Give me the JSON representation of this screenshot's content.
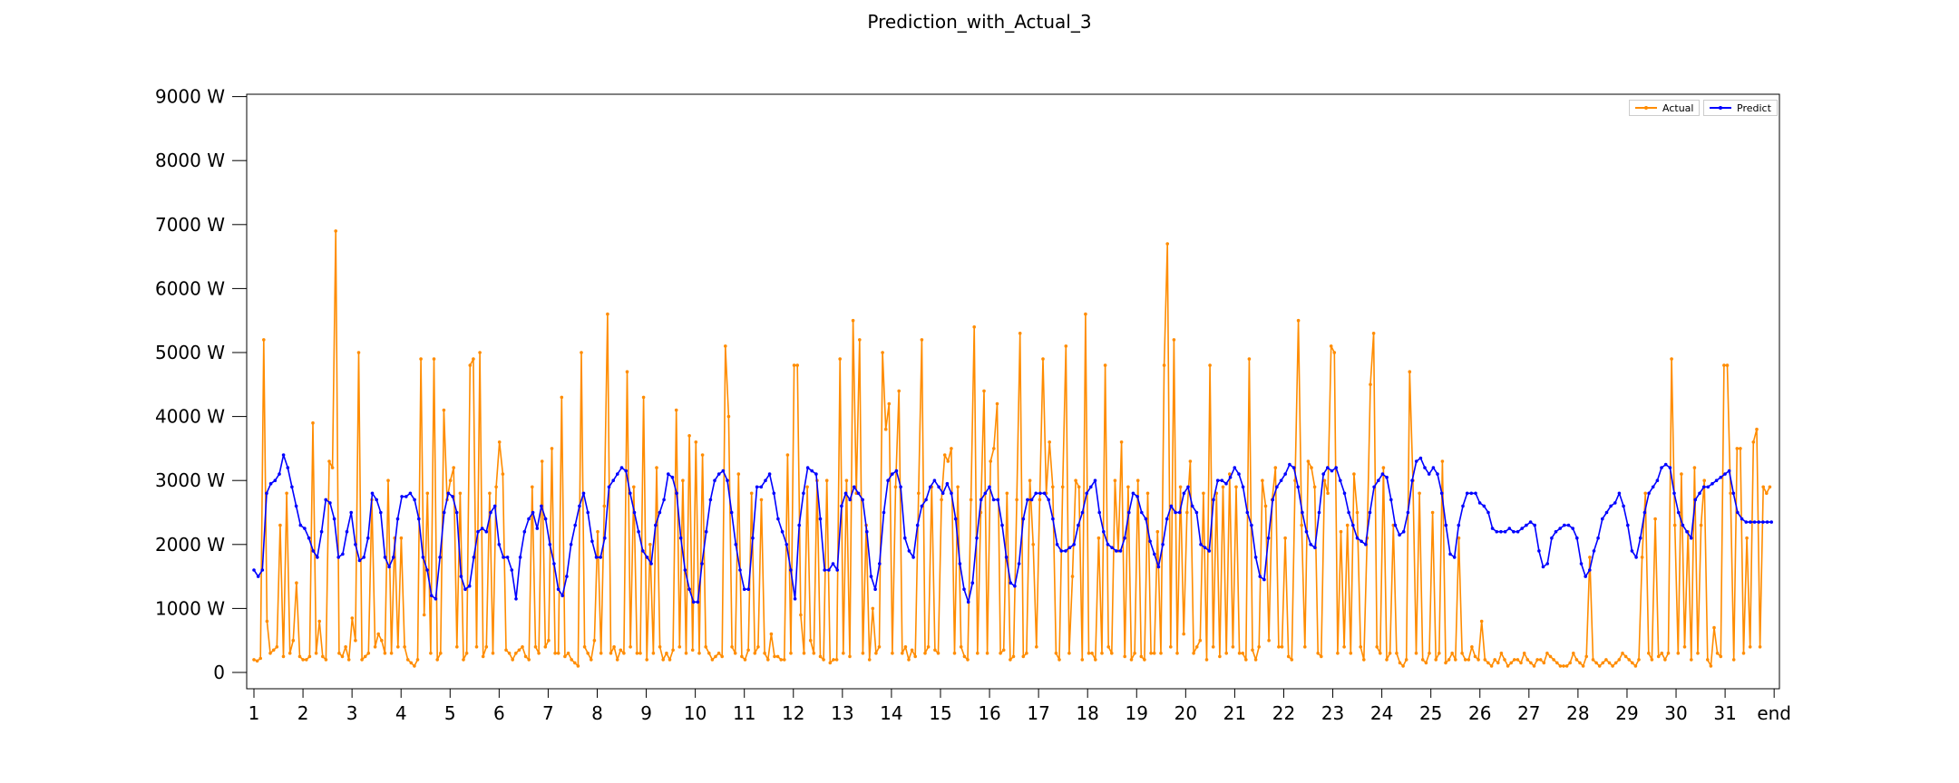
{
  "chart_data": {
    "type": "line",
    "title": "Prediction_with_Actual_3",
    "xlabel": "",
    "ylabel": "",
    "x_ticks": [
      "1",
      "2",
      "3",
      "4",
      "5",
      "6",
      "7",
      "8",
      "9",
      "10",
      "11",
      "12",
      "13",
      "14",
      "15",
      "16",
      "17",
      "18",
      "19",
      "20",
      "21",
      "22",
      "23",
      "24",
      "25",
      "26",
      "27",
      "28",
      "29",
      "30",
      "31",
      "end"
    ],
    "y_ticks": [
      "0",
      "1000 W",
      "2000 W",
      "3000 W",
      "4000 W",
      "5000 W",
      "6000 W",
      "7000 W",
      "8000 W",
      "9000 W"
    ],
    "y_tick_values": [
      0,
      1000,
      2000,
      3000,
      4000,
      5000,
      6000,
      7000,
      8000,
      9000
    ],
    "ylim": [
      -250,
      9000
    ],
    "xlim": [
      0.88,
      32.05
    ],
    "legend_position": "top-right",
    "colors": {
      "actual": "#ff8c00",
      "predict": "#0000ff"
    },
    "series": [
      {
        "name": "Actual",
        "points_per_day": 16,
        "day_profiles": [
          [
            200,
            180,
            220,
            5200,
            800,
            300,
            350,
            400,
            2300,
            250,
            2800,
            300,
            500,
            1400,
            250,
            200
          ],
          [
            200,
            250,
            3900,
            300,
            800,
            250,
            200,
            3300,
            3200,
            6900,
            300,
            250,
            400,
            200,
            850,
            500
          ],
          [
            5000,
            200,
            250,
            300,
            2700,
            400,
            600,
            500,
            300,
            3000,
            300,
            2100,
            400,
            2100,
            400,
            200
          ],
          [
            150,
            100,
            200,
            4900,
            900,
            2800,
            300,
            4900,
            200,
            300,
            4100,
            2700,
            3000,
            3200,
            400,
            2800
          ],
          [
            200,
            300,
            4800,
            4900,
            400,
            5000,
            250,
            400,
            2800,
            300,
            2900,
            3600,
            3100,
            350,
            300,
            200
          ],
          [
            300,
            350,
            400,
            250,
            200,
            2900,
            400,
            300,
            3300,
            400,
            500,
            3500,
            300,
            300,
            4300,
            250
          ],
          [
            300,
            200,
            150,
            100,
            5000,
            400,
            300,
            200,
            500,
            2200,
            300,
            2600,
            5600,
            300,
            400,
            200
          ],
          [
            350,
            300,
            4700,
            400,
            2900,
            300,
            300,
            4300,
            200,
            2000,
            300,
            3200,
            400,
            200,
            300,
            200
          ],
          [
            350,
            4100,
            400,
            3000,
            300,
            3700,
            350,
            3600,
            300,
            3400,
            400,
            300,
            200,
            250,
            300,
            250
          ],
          [
            5100,
            4000,
            400,
            300,
            3100,
            250,
            200,
            350,
            2800,
            300,
            400,
            2700,
            300,
            200,
            600,
            250
          ],
          [
            250,
            200,
            200,
            3400,
            300,
            4800,
            4800,
            900,
            300,
            2900,
            500,
            300,
            3000,
            250,
            200,
            3000
          ],
          [
            150,
            200,
            200,
            4900,
            300,
            3000,
            250,
            5500,
            2800,
            5200,
            300,
            2300,
            200,
            1000,
            300,
            400
          ],
          [
            5000,
            3800,
            4200,
            300,
            2900,
            4400,
            300,
            400,
            200,
            350,
            250,
            2800,
            5200,
            300,
            400,
            2900
          ],
          [
            350,
            300,
            2700,
            3400,
            3300,
            3500,
            300,
            2900,
            400,
            250,
            200,
            2700,
            5400,
            300,
            2500,
            4400
          ],
          [
            300,
            3300,
            3500,
            4200,
            300,
            350,
            2800,
            200,
            250,
            2700,
            5300,
            250,
            300,
            3000,
            2000,
            400
          ],
          [
            2700,
            4900,
            2800,
            3600,
            2900,
            300,
            200,
            2900,
            5100,
            300,
            1500,
            3000,
            2900,
            200,
            5600,
            300
          ],
          [
            300,
            200,
            2100,
            300,
            4800,
            400,
            300,
            3000,
            1900,
            3600,
            250,
            2900,
            200,
            300,
            3000,
            250
          ],
          [
            200,
            2800,
            300,
            300,
            2200,
            300,
            4800,
            6700,
            400,
            5200,
            300,
            2900,
            600,
            2500,
            3300,
            300
          ],
          [
            400,
            500,
            2800,
            200,
            4800,
            400,
            2800,
            250,
            2900,
            300,
            3100,
            400,
            2900,
            300,
            300,
            200
          ],
          [
            4900,
            350,
            200,
            400,
            3000,
            2600,
            500,
            2700,
            3200,
            400,
            400,
            2100,
            250,
            200,
            3000,
            5500
          ],
          [
            2300,
            400,
            3300,
            3200,
            2900,
            300,
            250,
            3000,
            2800,
            5100,
            5000,
            300,
            2200,
            400,
            2300,
            300
          ],
          [
            3100,
            2500,
            400,
            200,
            2100,
            4500,
            5300,
            400,
            300,
            3200,
            200,
            300,
            2300,
            300,
            150,
            100
          ],
          [
            200,
            4700,
            3000,
            300,
            2800,
            200,
            150,
            300,
            2500,
            200,
            300,
            3300,
            150,
            200,
            300,
            200
          ],
          [
            2100,
            300,
            200,
            200,
            400,
            250,
            200,
            800,
            200,
            150,
            100,
            200,
            150,
            300,
            200,
            100
          ],
          [
            150,
            200,
            200,
            150,
            300,
            200,
            150,
            100,
            200,
            200,
            150,
            300,
            250,
            200,
            150,
            100
          ],
          [
            100,
            100,
            150,
            300,
            200,
            150,
            100,
            250,
            1800,
            200,
            150,
            100,
            150,
            200,
            150,
            100
          ],
          [
            150,
            200,
            300,
            250,
            200,
            150,
            100,
            200,
            1800,
            2800,
            300,
            200,
            2400,
            250,
            300,
            200
          ],
          [
            300,
            4900,
            2300,
            300,
            3100,
            400,
            2200,
            200,
            3200,
            300,
            2300,
            3000,
            200,
            100,
            700,
            300
          ],
          [
            250,
            4800,
            4800,
            2800,
            200,
            3500,
            3500,
            300,
            2100,
            400,
            3600,
            3800,
            400,
            2900,
            2800,
            2900
          ]
        ]
      },
      {
        "name": "Predict",
        "points_per_day": 12,
        "day_profiles": [
          [
            1600,
            1500,
            1600,
            2800,
            2950,
            3000,
            3100,
            3400,
            3200,
            2900,
            2600,
            2300
          ],
          [
            2250,
            2100,
            1900,
            1800,
            2200,
            2700,
            2650,
            2400,
            1800,
            1850,
            2200,
            2500
          ],
          [
            2000,
            1750,
            1800,
            2100,
            2800,
            2700,
            2500,
            1800,
            1650,
            1800,
            2400,
            2750
          ],
          [
            2750,
            2800,
            2700,
            2400,
            1800,
            1600,
            1200,
            1150,
            1800,
            2500,
            2800,
            2750
          ],
          [
            2500,
            1500,
            1300,
            1350,
            1800,
            2200,
            2250,
            2200,
            2500,
            2600,
            2000,
            1800
          ],
          [
            1800,
            1600,
            1150,
            1800,
            2200,
            2400,
            2500,
            2250,
            2600,
            2400,
            2000,
            1700
          ],
          [
            1300,
            1200,
            1500,
            2000,
            2300,
            2600,
            2800,
            2500,
            2050,
            1800,
            1800,
            2100
          ],
          [
            2900,
            3000,
            3100,
            3200,
            3150,
            2800,
            2500,
            2200,
            1900,
            1800,
            1700,
            2300
          ],
          [
            2500,
            2700,
            3100,
            3050,
            2800,
            2100,
            1600,
            1300,
            1100,
            1100,
            1700,
            2200
          ],
          [
            2700,
            3000,
            3100,
            3150,
            3000,
            2500,
            2000,
            1600,
            1300,
            1300,
            2100,
            2900
          ],
          [
            2900,
            3000,
            3100,
            2800,
            2400,
            2200,
            2000,
            1600,
            1150,
            2300,
            2800,
            3200
          ],
          [
            3150,
            3100,
            2400,
            1600,
            1600,
            1700,
            1600,
            2600,
            2800,
            2700,
            2900,
            2800
          ],
          [
            2700,
            2200,
            1500,
            1300,
            1700,
            2500,
            3000,
            3100,
            3150,
            2900,
            2100,
            1900
          ],
          [
            1800,
            2300,
            2600,
            2700,
            2900,
            3000,
            2900,
            2800,
            2950,
            2800,
            2400,
            1700
          ],
          [
            1300,
            1100,
            1400,
            2100,
            2700,
            2800,
            2900,
            2700,
            2700,
            2300,
            1800,
            1400
          ],
          [
            1350,
            1700,
            2400,
            2700,
            2700,
            2800,
            2800,
            2800,
            2700,
            2400,
            2000,
            1900
          ],
          [
            1900,
            1950,
            2000,
            2300,
            2500,
            2800,
            2900,
            3000,
            2500,
            2200,
            2000,
            1950
          ],
          [
            1900,
            1900,
            2100,
            2500,
            2800,
            2750,
            2500,
            2400,
            2050,
            1850,
            1650,
            2000
          ],
          [
            2400,
            2600,
            2500,
            2500,
            2800,
            2900,
            2600,
            2500,
            2000,
            1950,
            1900,
            2700
          ],
          [
            3000,
            3000,
            2950,
            3050,
            3200,
            3100,
            2900,
            2500,
            2300,
            1800,
            1500,
            1450
          ],
          [
            2100,
            2700,
            2900,
            3000,
            3100,
            3250,
            3200,
            2900,
            2500,
            2200,
            2000,
            1950
          ],
          [
            2500,
            3100,
            3200,
            3150,
            3200,
            3000,
            2800,
            2500,
            2300,
            2100,
            2050,
            2000
          ],
          [
            2500,
            2900,
            3000,
            3100,
            3050,
            2700,
            2300,
            2150,
            2200,
            2500,
            3000,
            3300
          ],
          [
            3350,
            3200,
            3100,
            3200,
            3100,
            2800,
            2300,
            1850,
            1800,
            2300,
            2600,
            2800
          ],
          [
            2800,
            2800,
            2650,
            2600,
            2500,
            2250,
            2200,
            2200,
            2200,
            2250,
            2200,
            2200
          ],
          [
            2250,
            2300,
            2350,
            2300,
            1900,
            1650,
            1700,
            2100,
            2200,
            2250,
            2300,
            2300
          ],
          [
            2250,
            2100,
            1700,
            1500,
            1600,
            1900,
            2100,
            2400,
            2500,
            2600,
            2650,
            2800
          ],
          [
            2600,
            2300,
            1900,
            1800,
            2100,
            2500,
            2800,
            2900,
            3000,
            3200,
            3250,
            3200
          ],
          [
            2800,
            2500,
            2300,
            2200,
            2100,
            2700,
            2800,
            2900,
            2900,
            2950,
            3000,
            3050
          ],
          [
            3100,
            3150,
            2800,
            2500,
            2400,
            2350,
            2350,
            2350,
            2350,
            2350,
            2350,
            2350
          ]
        ]
      }
    ]
  }
}
